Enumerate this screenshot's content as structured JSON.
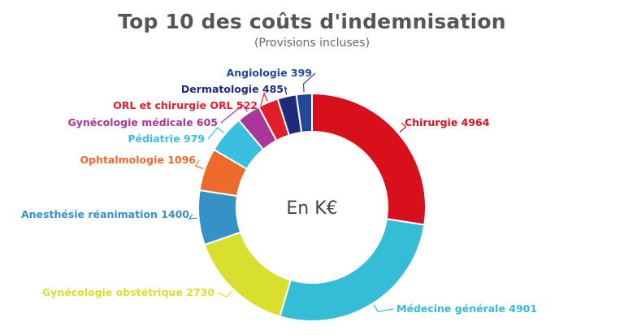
{
  "chart_data": {
    "type": "pie",
    "title": "Top 10 des coûts d'indemnisation",
    "subtitle": "(Provisions incluses)",
    "center_label": "En K€",
    "slices": [
      {
        "label": "Chirurgie",
        "value": 4964,
        "color": "#d8101c"
      },
      {
        "label": "Médecine générale",
        "value": 4901,
        "color": "#35bcd6"
      },
      {
        "label": "Gynécologie obstétrique",
        "value": 2730,
        "color": "#d9df2e"
      },
      {
        "label": "Anesthésie réanimation",
        "value": 1400,
        "color": "#3592c6"
      },
      {
        "label": "Ophtalmologie",
        "value": 1096,
        "color": "#ec6a2b"
      },
      {
        "label": "Pédiatrie",
        "value": 979,
        "color": "#3bbfe0"
      },
      {
        "label": "Gynécologie médicale",
        "value": 605,
        "color": "#a9369a"
      },
      {
        "label": "ORL et chirurgie ORL",
        "value": 522,
        "color": "#e11f2c"
      },
      {
        "label": "Dermatologie",
        "value": 485,
        "color": "#1e2b7a"
      },
      {
        "label": "Angiologie",
        "value": 399,
        "color": "#23489b"
      }
    ]
  }
}
